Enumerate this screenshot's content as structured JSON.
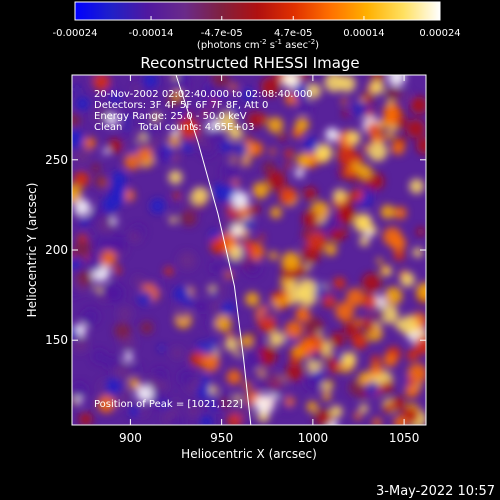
{
  "colorbar": {
    "ticks": [
      "-0.00024",
      "-0.00014",
      "-4.7e-05",
      "4.7e-05",
      "0.00014",
      "0.00024"
    ],
    "tick_values": [
      -0.00024,
      -0.00014,
      -4.7e-05,
      4.7e-05,
      0.00014,
      0.00024
    ],
    "range": [
      -0.00024,
      0.00024
    ],
    "units_main": "(photons cm",
    "units_exp1": "-2",
    "units_mid": " s",
    "units_exp2": "-1",
    "units_end": " asec",
    "units_exp3": "-2",
    "units_close": ")",
    "colors": [
      "#0000ff",
      "#2020c8",
      "#5018a0",
      "#6a2a8a",
      "#802040",
      "#b01010",
      "#e03000",
      "#ff7000",
      "#ffb000",
      "#ffe060",
      "#ffffff"
    ]
  },
  "chart_data": {
    "type": "heatmap",
    "title": "Reconstructed RHESSI Image",
    "xlabel": "Heliocentric X (arcsec)",
    "ylabel": "Heliocentric Y (arcsec)",
    "xlim": [
      868,
      1062
    ],
    "ylim": [
      103,
      297
    ],
    "x_ticks": [
      900,
      950,
      1000,
      1050
    ],
    "y_ticks": [
      150,
      200,
      250
    ],
    "grid": false,
    "annotations": [
      "20-Nov-2002 02:02:40.000 to 02:08:40.000",
      "Detectors: 3F 4F 5F 6F 7F 8F, Att 0",
      "Energy Range: 25.0 - 50.0 keV",
      "Clean     Total counts: 4.65E+03"
    ],
    "peak_text": "Position of Peak = [1021,122]",
    "peak_position": [
      1021,
      122
    ],
    "limb_points": [
      [
        925,
        297
      ],
      [
        937,
        260
      ],
      [
        948,
        220
      ],
      [
        957,
        180
      ],
      [
        962,
        140
      ],
      [
        966,
        103
      ]
    ]
  },
  "footer": {
    "date": "3-May-2022 10:57"
  }
}
